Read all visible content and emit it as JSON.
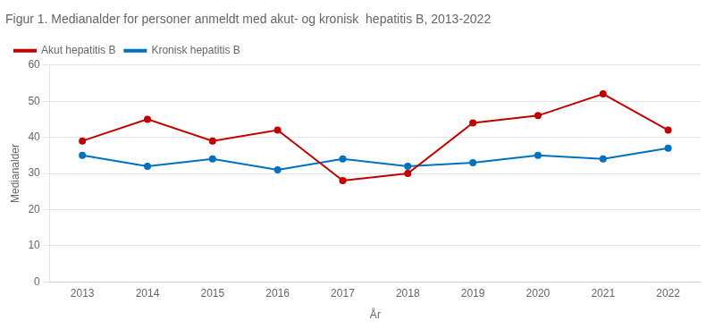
{
  "chart_data": {
    "type": "line",
    "title": "Figur 1. Medianalder for personer anmeldt med akut- og kronisk  hepatitis B, 2013-2022",
    "x_label": "År",
    "y_label": "Medianalder",
    "x": [
      2013,
      2014,
      2015,
      2016,
      2017,
      2018,
      2019,
      2020,
      2021,
      2022
    ],
    "series": [
      {
        "name": "Akut hepatitis B",
        "color": "#C00000",
        "marker": "circle",
        "line_style": "solid",
        "values": [
          39,
          45,
          39,
          42,
          28,
          30,
          44,
          46,
          52,
          42
        ]
      },
      {
        "name": "Kronisk hepatitis B",
        "color": "#0070C0",
        "marker": "circle",
        "line_style": "solid",
        "values": [
          35,
          32,
          34,
          31,
          34,
          32,
          33,
          35,
          34,
          37
        ]
      }
    ],
    "xlim": [
      2012.5,
      2022.5
    ],
    "xticks": [
      2013,
      2014,
      2015,
      2016,
      2017,
      2018,
      2019,
      2020,
      2021,
      2022
    ],
    "ylim": [
      0,
      60
    ],
    "yticks": [
      0,
      10,
      20,
      30,
      40,
      50,
      60
    ],
    "grid": "y",
    "legend": "upper left"
  }
}
